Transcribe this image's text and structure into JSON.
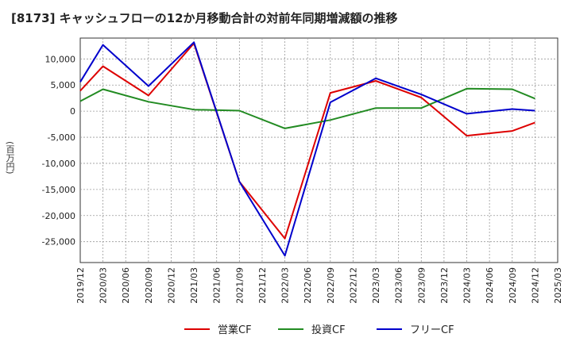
{
  "chart_data": {
    "type": "line",
    "title": "[8173]  キャッシュフローの12か月移動合計の対前年同期増減額の推移",
    "ylabel": "(百万円)",
    "ylim": [
      -29000,
      14000
    ],
    "yticks": [
      10000,
      5000,
      0,
      -5000,
      -10000,
      -15000,
      -20000,
      -25000
    ],
    "ytick_labels": [
      "10,000",
      "5,000",
      "0",
      "-5,000",
      "-10,000",
      "-15,000",
      "-20,000",
      "-25,000"
    ],
    "xticks": [
      "2019/12",
      "2020/03",
      "2020/06",
      "2020/09",
      "2020/12",
      "2021/03",
      "2021/06",
      "2021/09",
      "2021/12",
      "2022/03",
      "2022/06",
      "2022/09",
      "2022/12",
      "2023/03",
      "2023/06",
      "2023/09",
      "2023/12",
      "2024/03",
      "2024/06",
      "2024/09",
      "2024/12",
      "2025/03"
    ],
    "grid": true,
    "legend_position": "bottom",
    "series": [
      {
        "name": "営業CF",
        "color": "#dd0000",
        "points": [
          [
            "2019/12",
            3900
          ],
          [
            "2020/03",
            8600
          ],
          [
            "2020/09",
            3000
          ],
          [
            "2021/03",
            13000
          ],
          [
            "2021/09",
            -13500
          ],
          [
            "2022/03",
            -24400
          ],
          [
            "2022/09",
            3500
          ],
          [
            "2023/03",
            5800
          ],
          [
            "2023/09",
            2600
          ],
          [
            "2024/03",
            -4700
          ],
          [
            "2024/09",
            -3800
          ],
          [
            "2024/12",
            -2200
          ]
        ]
      },
      {
        "name": "投資CF",
        "color": "#228b22",
        "points": [
          [
            "2019/12",
            1900
          ],
          [
            "2020/03",
            4200
          ],
          [
            "2020/09",
            1800
          ],
          [
            "2021/03",
            300
          ],
          [
            "2021/09",
            100
          ],
          [
            "2022/03",
            -3300
          ],
          [
            "2022/09",
            -1700
          ],
          [
            "2023/03",
            600
          ],
          [
            "2023/09",
            600
          ],
          [
            "2024/03",
            4300
          ],
          [
            "2024/09",
            4200
          ],
          [
            "2024/12",
            2400
          ]
        ]
      },
      {
        "name": "フリーCF",
        "color": "#0000cc",
        "points": [
          [
            "2019/12",
            5600
          ],
          [
            "2020/03",
            12700
          ],
          [
            "2020/09",
            4800
          ],
          [
            "2021/03",
            13200
          ],
          [
            "2021/09",
            -13500
          ],
          [
            "2022/03",
            -27700
          ],
          [
            "2022/09",
            1700
          ],
          [
            "2023/03",
            6300
          ],
          [
            "2023/09",
            3200
          ],
          [
            "2024/03",
            -500
          ],
          [
            "2024/09",
            400
          ],
          [
            "2024/12",
            100
          ]
        ]
      }
    ]
  }
}
